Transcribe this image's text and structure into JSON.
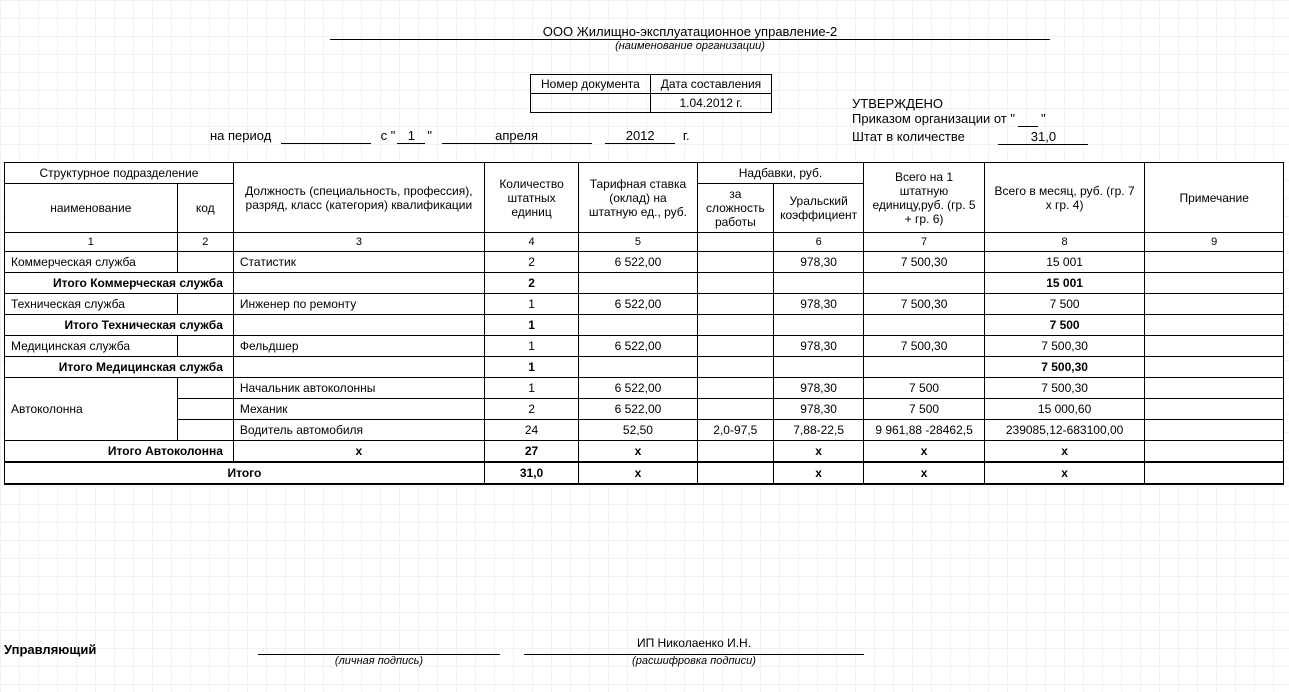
{
  "org_name": "ООО Жилищно-эксплуатационное управление-2",
  "org_sub": "(наименование организации)",
  "doc_header": {
    "col1": "Номер документа",
    "col2": "Дата составления",
    "val1": "",
    "val2": "1.04.2012 г."
  },
  "approve": {
    "title": "УТВЕРЖДЕНО",
    "line1_a": "Приказом организации от \"",
    "line1_b": "\"",
    "line2_a": "Штат в количестве",
    "line2_val": "31,0"
  },
  "period": {
    "label": "на период",
    "from": "с",
    "day": "1",
    "month": "апреля",
    "year": "2012",
    "year_suffix": "г."
  },
  "headers": {
    "struct": "Структурное подразделение",
    "name": "наименование",
    "code": "код",
    "pos": "Должность (специальность, профессия), разряд, класс (категория) квалификации",
    "qty": "Количество штатных единиц",
    "rate": "Тарифная ставка (оклад) на штатную ед., руб.",
    "addgroup": "Надбавки, руб.",
    "add1": "за сложность работы",
    "add2": "Уральский коэффициент",
    "unit": "Всего на 1 штатную единицу,руб. (гр. 5 + гр. 6)",
    "month": "Всего в месяц, руб. (гр. 7 х гр. 4)",
    "note": "Примечание"
  },
  "colnums": [
    "1",
    "2",
    "3",
    "4",
    "5",
    "",
    "6",
    "7",
    "8",
    "9"
  ],
  "rows": [
    {
      "type": "data",
      "name": "Коммерческая служба",
      "code": "",
      "pos": "Статистик",
      "qty": "2",
      "rate": "6 522,00",
      "a1": "",
      "a2": "978,30",
      "unit": "7 500,30",
      "month": "15 001",
      "note": ""
    },
    {
      "type": "subtotal",
      "label": "Итого Коммерческая служба",
      "qty": "2",
      "month": "15 001"
    },
    {
      "type": "data",
      "name": "Техническая служба",
      "code": "",
      "pos": "Инженер по ремонту",
      "qty": "1",
      "rate": "6 522,00",
      "a1": "",
      "a2": "978,30",
      "unit": "7 500,30",
      "month": "7 500",
      "note": ""
    },
    {
      "type": "subtotal",
      "label": "Итого Техническая  служба",
      "qty": "1",
      "month": "7 500"
    },
    {
      "type": "data",
      "name": "Медицинская служба",
      "code": "",
      "pos": "Фельдшер",
      "qty": "1",
      "rate": "6 522,00",
      "a1": "",
      "a2": "978,30",
      "unit": "7 500,30",
      "month": "7 500,30",
      "note": ""
    },
    {
      "type": "subtotal",
      "label": "Итого Медицинская служба",
      "qty": "1",
      "month": "7 500,30"
    },
    {
      "type": "data",
      "name": "Автоколонна",
      "name_rowspan": 3,
      "code": "",
      "pos": "Начальник автоколонны",
      "qty": "1",
      "rate": "6 522,00",
      "a1": "",
      "a2": "978,30",
      "unit": "7 500",
      "month": "7 500,30",
      "note": ""
    },
    {
      "type": "data",
      "name": null,
      "code": "",
      "pos": "Механик",
      "qty": "2",
      "rate": "6 522,00",
      "a1": "",
      "a2": "978,30",
      "unit": "7 500",
      "month": "15 000,60",
      "note": ""
    },
    {
      "type": "data",
      "name": null,
      "code": "",
      "pos": "Водитель автомобиля",
      "qty": "24",
      "rate": "52,50",
      "a1": "2,0-97,5",
      "a2": "7,88-22,5",
      "unit": "9 961,88 -28462,5",
      "month": "239085,12-683100,00",
      "note": ""
    },
    {
      "type": "subtotal",
      "label": "Итого Автоколонна",
      "pos_x": "x",
      "qty": "27",
      "rate_x": "x",
      "a2_x": "x",
      "unit_x": "x",
      "month": "x"
    },
    {
      "type": "grand",
      "label": "Итого",
      "qty": "31,0",
      "rate_x": "x",
      "a2_x": "x",
      "unit_x": "x",
      "month": "x"
    }
  ],
  "sign": {
    "role": "Управляющий",
    "name": "ИП Николаенко И.Н.",
    "cap1": "(личная подпись)",
    "cap2": "(расшифровка подписи)"
  }
}
